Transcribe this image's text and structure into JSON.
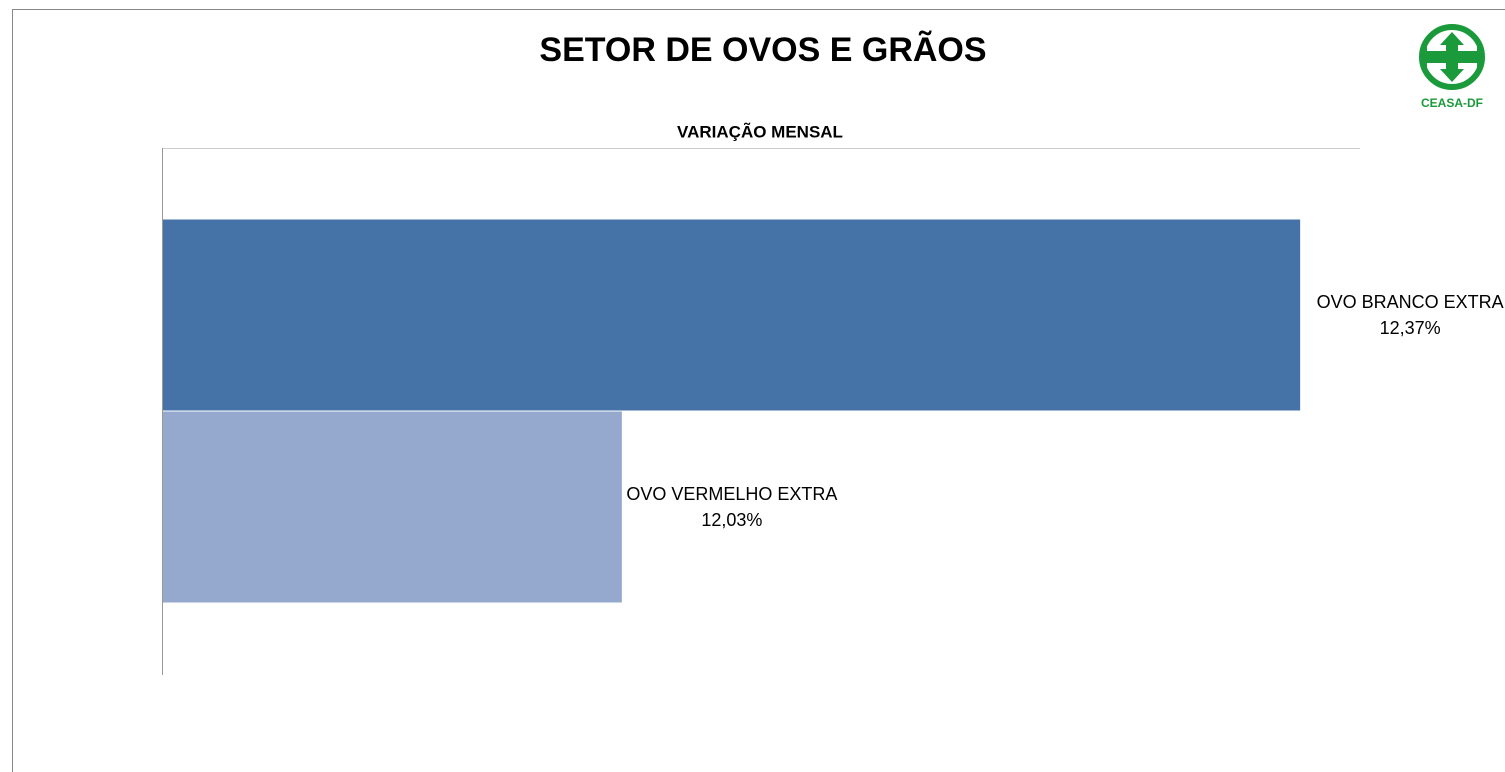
{
  "chart_data": {
    "type": "hbar",
    "title": "SETOR DE OVOS E GRÃOS",
    "subtitle": "VARIAÇÃO MENSAL",
    "logo_text": "CEASA-DF",
    "categories": [
      "OVO BRANCO EXTRA",
      "OVO VERMELHO EXTRA"
    ],
    "values": [
      12.37,
      12.03
    ],
    "value_labels": [
      "12,37%",
      "12,03%"
    ],
    "colors": [
      "#4573a7",
      "#95a9cf"
    ],
    "xlim": [
      11.8,
      12.4
    ]
  }
}
